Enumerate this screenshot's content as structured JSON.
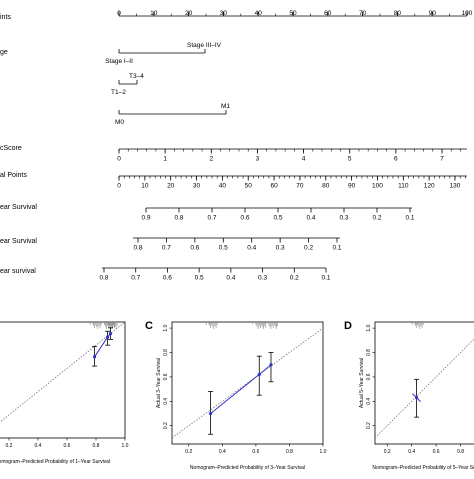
{
  "chart_data": [
    {
      "type": "nomogram",
      "rows": [
        {
          "label": "ints",
          "ticks": [
            {
              "v": 0,
              "t": "0"
            },
            {
              "v": 10,
              "t": "10"
            },
            {
              "v": 20,
              "t": "20"
            },
            {
              "v": 30,
              "t": "30"
            },
            {
              "v": 40,
              "t": "40"
            },
            {
              "v": 50,
              "t": "50"
            },
            {
              "v": 60,
              "t": "60"
            },
            {
              "v": 70,
              "t": "70"
            },
            {
              "v": 80,
              "t": "80"
            },
            {
              "v": 90,
              "t": "90"
            },
            {
              "v": 100,
              "t": "100"
            }
          ]
        },
        {
          "label": "ge",
          "ticks": [
            {
              "v": 0,
              "t": "Stage I–II"
            },
            {
              "v": 23,
              "t": "Stage III–IV"
            }
          ]
        },
        {
          "label": "",
          "ticks": [
            {
              "v": 0,
              "t": "T1–2"
            },
            {
              "v": 5,
              "t": "T3–4"
            }
          ]
        },
        {
          "label": "",
          "ticks": [
            {
              "v": 0,
              "t": "M0"
            },
            {
              "v": 29,
              "t": "M1"
            }
          ]
        },
        {
          "label": "cScore",
          "ticks": [
            {
              "v": 0,
              "t": "0"
            },
            {
              "v": 12.5,
              "t": "1"
            },
            {
              "v": 25,
              "t": "2"
            },
            {
              "v": 37.5,
              "t": "3"
            },
            {
              "v": 50,
              "t": "4"
            },
            {
              "v": 62.5,
              "t": "5"
            },
            {
              "v": 75,
              "t": "6"
            },
            {
              "v": 87.5,
              "t": "7"
            }
          ]
        },
        {
          "label": "al Points",
          "ticks": [
            {
              "v": 0,
              "t": "0"
            },
            {
              "v": 10,
              "t": "10"
            },
            {
              "v": 20,
              "t": "20"
            },
            {
              "v": 30,
              "t": "30"
            },
            {
              "v": 40,
              "t": "40"
            },
            {
              "v": 50,
              "t": "50"
            },
            {
              "v": 60,
              "t": "60"
            },
            {
              "v": 70,
              "t": "70"
            },
            {
              "v": 80,
              "t": "80"
            },
            {
              "v": 90,
              "t": "90"
            },
            {
              "v": 100,
              "t": "100"
            },
            {
              "v": 110,
              "t": "110"
            },
            {
              "v": 120,
              "t": "120"
            },
            {
              "v": 130,
              "t": "130"
            }
          ]
        },
        {
          "label": "ear Survival",
          "ticks": [
            {
              "v": 0.9,
              "t": "0.9"
            },
            {
              "v": 0.8,
              "t": "0.8"
            },
            {
              "v": 0.7,
              "t": "0.7"
            },
            {
              "v": 0.6,
              "t": "0.6"
            },
            {
              "v": 0.5,
              "t": "0.5"
            },
            {
              "v": 0.4,
              "t": "0.4"
            },
            {
              "v": 0.3,
              "t": "0.3"
            },
            {
              "v": 0.2,
              "t": "0.2"
            },
            {
              "v": 0.1,
              "t": "0.1"
            }
          ]
        },
        {
          "label": "ear Survival",
          "ticks": [
            {
              "v": 0.8,
              "t": "0.8"
            },
            {
              "v": 0.7,
              "t": "0.7"
            },
            {
              "v": 0.6,
              "t": "0.6"
            },
            {
              "v": 0.5,
              "t": "0.5"
            },
            {
              "v": 0.4,
              "t": "0.4"
            },
            {
              "v": 0.3,
              "t": "0.3"
            },
            {
              "v": 0.2,
              "t": "0.2"
            },
            {
              "v": 0.1,
              "t": "0.1"
            }
          ]
        },
        {
          "label": "ear survival",
          "ticks": [
            {
              "v": 0.8,
              "t": "0.8"
            },
            {
              "v": 0.7,
              "t": "0.7"
            },
            {
              "v": 0.6,
              "t": "0.6"
            },
            {
              "v": 0.5,
              "t": "0.5"
            },
            {
              "v": 0.4,
              "t": "0.4"
            },
            {
              "v": 0.3,
              "t": "0.3"
            },
            {
              "v": 0.2,
              "t": "0.2"
            },
            {
              "v": 0.1,
              "t": "0.1"
            }
          ]
        }
      ]
    },
    {
      "type": "scatter",
      "panel_label": "",
      "xlabel": "Nomogram–Predicted Probability of 1–Year Survival",
      "ylabel": "",
      "xlim": [
        0,
        1.0
      ],
      "ylim": [
        0,
        1.0
      ],
      "xticks": [
        "0.2",
        "0.4",
        "0.6",
        "0.8",
        "1.0"
      ],
      "yticks": [],
      "points": [
        {
          "x": 0.79,
          "y": 0.7,
          "lo": 0.62,
          "hi": 0.79
        },
        {
          "x": 0.88,
          "y": 0.87,
          "lo": 0.8,
          "hi": 0.92
        },
        {
          "x": 0.9,
          "y": 0.9,
          "lo": 0.85,
          "hi": 0.95
        }
      ],
      "reference_line": "diagonal",
      "line_color": "#3333cc"
    },
    {
      "type": "scatter",
      "panel_label": "C",
      "xlabel": "Nomogram–Predicted Probability of 3–Year Survival",
      "ylabel": "Actual 3–Year Survival",
      "xlim": [
        0.1,
        1.0
      ],
      "ylim": [
        0.05,
        1.05
      ],
      "xticks": [
        "0.2",
        "0.4",
        "0.6",
        "0.8",
        "1.0"
      ],
      "yticks": [
        "0.2",
        "0.4",
        "0.6",
        "0.8",
        "1.0"
      ],
      "points": [
        {
          "x": 0.33,
          "y": 0.3,
          "lo": 0.13,
          "hi": 0.48
        },
        {
          "x": 0.62,
          "y": 0.62,
          "lo": 0.45,
          "hi": 0.77
        },
        {
          "x": 0.69,
          "y": 0.7,
          "lo": 0.56,
          "hi": 0.8
        }
      ],
      "reference_line": "diagonal",
      "line_color": "#3333cc"
    },
    {
      "type": "scatter",
      "panel_label": "D",
      "xlabel": "Nomogram–Predicted Probability of 5–Year Survival",
      "ylabel": "Actual 5–Year Survival",
      "xlim": [
        0.1,
        1.0
      ],
      "ylim": [
        0.05,
        1.05
      ],
      "xticks": [
        "0.2",
        "0.4",
        "0.6",
        "0.8"
      ],
      "yticks": [
        "0.2",
        "0.4",
        "0.6",
        "0.8",
        "1.0"
      ],
      "points": [
        {
          "x": 0.44,
          "y": 0.43,
          "lo": 0.27,
          "hi": 0.58
        }
      ],
      "reference_line": "diagonal",
      "line_color": "#3333cc"
    }
  ]
}
